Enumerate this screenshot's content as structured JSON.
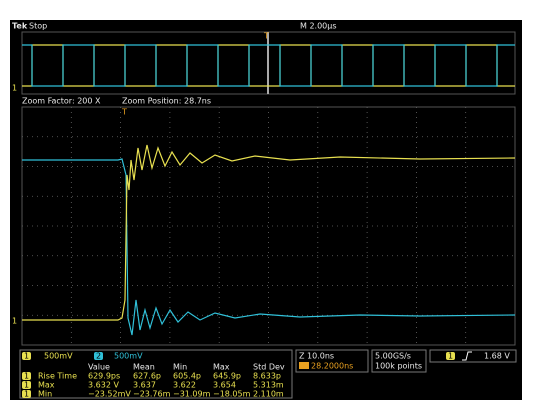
{
  "header": {
    "brand": "Tek",
    "status": "Stop",
    "timebase": "M 2.00µs"
  },
  "zoom": {
    "factor": "Zoom Factor: 200 X",
    "position": "Zoom Position: 28.7ns"
  },
  "channels": [
    {
      "number": "1",
      "scale": "500mV"
    },
    {
      "number": "2",
      "scale": "500mV"
    }
  ],
  "measurements": {
    "columns": [
      "Value",
      "Mean",
      "Min",
      "Max",
      "Std Dev"
    ],
    "rows": [
      {
        "source": "1",
        "label": "Rise Time",
        "cells": [
          "629.9ps",
          "627.6p",
          "605.4p",
          "645.9p",
          "8.633p"
        ]
      },
      {
        "source": "1",
        "label": "Max",
        "cells": [
          "3.632 V",
          "3.637",
          "3.622",
          "3.654",
          "5.313m"
        ]
      },
      {
        "source": "1",
        "label": "Min",
        "cells": [
          "−23.52mV",
          "−23.76m",
          "−31.09m",
          "−18.05m",
          "2.110m"
        ]
      }
    ]
  },
  "horizontal": {
    "scale": "Z 10.0ns",
    "position": "28.2000ns"
  },
  "acquisition": {
    "rate": "5.00GS/s",
    "length": "100k points"
  },
  "trigger": {
    "source": "1",
    "level": "1.68 V"
  },
  "markers": {
    "ground": "1",
    "trigger": "T"
  }
}
